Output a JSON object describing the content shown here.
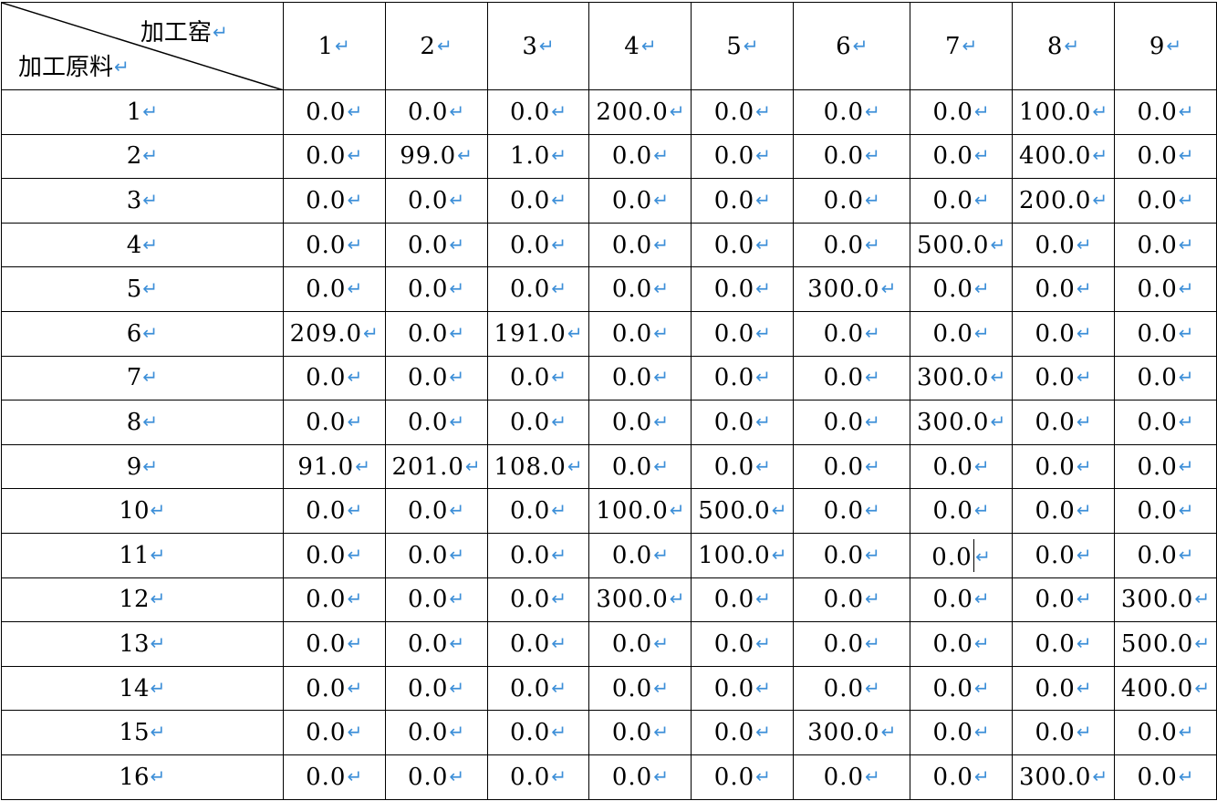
{
  "table": {
    "corner": {
      "top_label": "加工窑",
      "bottom_label": "加工原料"
    },
    "paragraph_mark": "↵",
    "columns": [
      "1",
      "2",
      "3",
      "4",
      "5",
      "6",
      "7",
      "8",
      "9"
    ],
    "rows": [
      {
        "label": "1",
        "values": [
          "0.0",
          "0.0",
          "0.0",
          "200.0",
          "0.0",
          "0.0",
          "0.0",
          "100.0",
          "0.0"
        ]
      },
      {
        "label": "2",
        "values": [
          "0.0",
          "99.0",
          "1.0",
          "0.0",
          "0.0",
          "0.0",
          "0.0",
          "400.0",
          "0.0"
        ]
      },
      {
        "label": "3",
        "values": [
          "0.0",
          "0.0",
          "0.0",
          "0.0",
          "0.0",
          "0.0",
          "0.0",
          "200.0",
          "0.0"
        ]
      },
      {
        "label": "4",
        "values": [
          "0.0",
          "0.0",
          "0.0",
          "0.0",
          "0.0",
          "0.0",
          "500.0",
          "0.0",
          "0.0"
        ]
      },
      {
        "label": "5",
        "values": [
          "0.0",
          "0.0",
          "0.0",
          "0.0",
          "0.0",
          "300.0",
          "0.0",
          "0.0",
          "0.0"
        ]
      },
      {
        "label": "6",
        "values": [
          "209.0",
          "0.0",
          "191.0",
          "0.0",
          "0.0",
          "0.0",
          "0.0",
          "0.0",
          "0.0"
        ]
      },
      {
        "label": "7",
        "values": [
          "0.0",
          "0.0",
          "0.0",
          "0.0",
          "0.0",
          "0.0",
          "300.0",
          "0.0",
          "0.0"
        ]
      },
      {
        "label": "8",
        "values": [
          "0.0",
          "0.0",
          "0.0",
          "0.0",
          "0.0",
          "0.0",
          "300.0",
          "0.0",
          "0.0"
        ]
      },
      {
        "label": "9",
        "values": [
          "91.0",
          "201.0",
          "108.0",
          "0.0",
          "0.0",
          "0.0",
          "0.0",
          "0.0",
          "0.0"
        ]
      },
      {
        "label": "10",
        "values": [
          "0.0",
          "0.0",
          "0.0",
          "100.0",
          "500.0",
          "0.0",
          "0.0",
          "0.0",
          "0.0"
        ]
      },
      {
        "label": "11",
        "values": [
          "0.0",
          "0.0",
          "0.0",
          "0.0",
          "100.0",
          "0.0",
          "0.0",
          "0.0",
          "0.0"
        ]
      },
      {
        "label": "12",
        "values": [
          "0.0",
          "0.0",
          "0.0",
          "300.0",
          "0.0",
          "0.0",
          "0.0",
          "0.0",
          "300.0"
        ]
      },
      {
        "label": "13",
        "values": [
          "0.0",
          "0.0",
          "0.0",
          "0.0",
          "0.0",
          "0.0",
          "0.0",
          "0.0",
          "500.0"
        ]
      },
      {
        "label": "14",
        "values": [
          "0.0",
          "0.0",
          "0.0",
          "0.0",
          "0.0",
          "0.0",
          "0.0",
          "0.0",
          "400.0"
        ]
      },
      {
        "label": "15",
        "values": [
          "0.0",
          "0.0",
          "0.0",
          "0.0",
          "0.0",
          "300.0",
          "0.0",
          "0.0",
          "0.0"
        ]
      },
      {
        "label": "16",
        "values": [
          "0.0",
          "0.0",
          "0.0",
          "0.0",
          "0.0",
          "0.0",
          "0.0",
          "300.0",
          "0.0"
        ]
      }
    ]
  },
  "colors": {
    "paragraph_mark": "#3d8fd8",
    "border": "#000000",
    "text": "#000000"
  }
}
